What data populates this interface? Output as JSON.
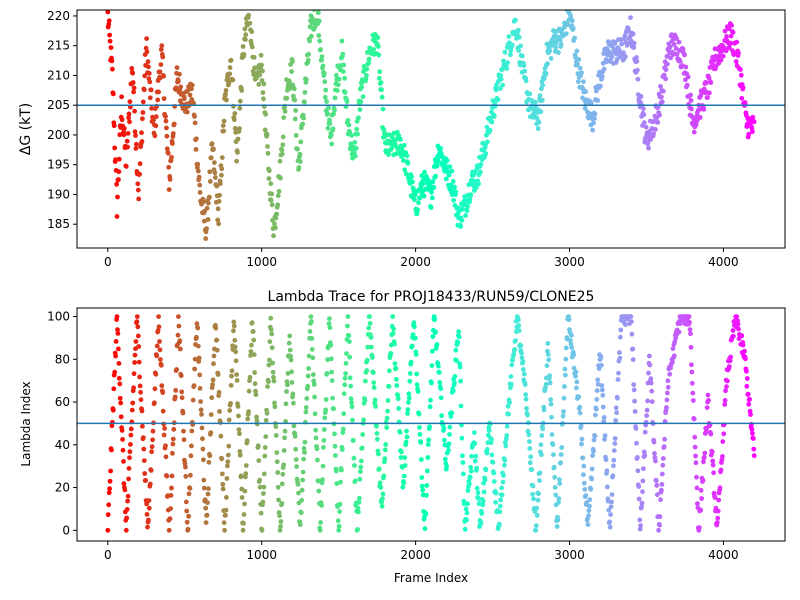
{
  "chart_data": [
    {
      "type": "scatter",
      "title": "",
      "xlabel": "",
      "ylabel": "ΔG (kT)",
      "xlim": [
        -200,
        4400
      ],
      "ylim": [
        181,
        221
      ],
      "xticks": [
        0,
        1000,
        2000,
        3000,
        4000
      ],
      "xtick_labels": [
        "0",
        "1000",
        "2000",
        "3000",
        "4000"
      ],
      "yticks": [
        185,
        190,
        195,
        200,
        205,
        210,
        215,
        220
      ],
      "ytick_labels": [
        "185",
        "190",
        "195",
        "200",
        "205",
        "210",
        "215",
        "220"
      ],
      "hline": 205,
      "hline_color": "#1f77b4",
      "grid": false,
      "legend": "none",
      "colormap": "rainbow (red at frame 0 → violet at frame 4200, point colour varies with frame)",
      "x_range_of_points": [
        0,
        4200
      ],
      "trace_knots": [
        [
          0,
          220
        ],
        [
          30,
          210
        ],
        [
          60,
          188
        ],
        [
          90,
          205
        ],
        [
          120,
          195
        ],
        [
          160,
          212
        ],
        [
          200,
          190
        ],
        [
          250,
          215
        ],
        [
          300,
          200
        ],
        [
          350,
          214
        ],
        [
          400,
          192
        ],
        [
          450,
          210
        ],
        [
          500,
          205
        ],
        [
          550,
          207
        ],
        [
          600,
          190
        ],
        [
          640,
          184
        ],
        [
          680,
          198
        ],
        [
          720,
          186
        ],
        [
          760,
          205
        ],
        [
          800,
          213
        ],
        [
          840,
          196
        ],
        [
          880,
          214
        ],
        [
          920,
          221
        ],
        [
          960,
          208
        ],
        [
          1000,
          212
        ],
        [
          1040,
          196
        ],
        [
          1080,
          184
        ],
        [
          1120,
          194
        ],
        [
          1160,
          208
        ],
        [
          1200,
          211
        ],
        [
          1240,
          194
        ],
        [
          1280,
          207
        ],
        [
          1320,
          218
        ],
        [
          1360,
          221
        ],
        [
          1400,
          210
        ],
        [
          1450,
          199
        ],
        [
          1480,
          208
        ],
        [
          1520,
          214
        ],
        [
          1560,
          202
        ],
        [
          1600,
          196
        ],
        [
          1640,
          206
        ],
        [
          1700,
          214
        ],
        [
          1750,
          216
        ],
        [
          1800,
          198
        ],
        [
          1850,
          198
        ],
        [
          1900,
          199
        ],
        [
          1950,
          194
        ],
        [
          2000,
          188
        ],
        [
          2050,
          192
        ],
        [
          2100,
          190
        ],
        [
          2150,
          198
        ],
        [
          2200,
          194
        ],
        [
          2240,
          192
        ],
        [
          2280,
          186
        ],
        [
          2320,
          188
        ],
        [
          2360,
          192
        ],
        [
          2400,
          193
        ],
        [
          2450,
          198
        ],
        [
          2500,
          204
        ],
        [
          2550,
          209
        ],
        [
          2600,
          214
        ],
        [
          2650,
          219
        ],
        [
          2700,
          210
        ],
        [
          2750,
          204
        ],
        [
          2800,
          203
        ],
        [
          2850,
          213
        ],
        [
          2900,
          216
        ],
        [
          2950,
          216
        ],
        [
          3000,
          221
        ],
        [
          3050,
          212
        ],
        [
          3100,
          206
        ],
        [
          3150,
          203
        ],
        [
          3200,
          210
        ],
        [
          3250,
          214
        ],
        [
          3300,
          214
        ],
        [
          3350,
          214
        ],
        [
          3400,
          218
        ],
        [
          3450,
          208
        ],
        [
          3500,
          199
        ],
        [
          3550,
          202
        ],
        [
          3600,
          207
        ],
        [
          3650,
          215
        ],
        [
          3700,
          215
        ],
        [
          3750,
          212
        ],
        [
          3800,
          202
        ],
        [
          3850,
          205
        ],
        [
          3900,
          208
        ],
        [
          3950,
          213
        ],
        [
          4000,
          215
        ],
        [
          4050,
          217
        ],
        [
          4100,
          212
        ],
        [
          4150,
          202
        ],
        [
          4200,
          201
        ]
      ]
    },
    {
      "type": "scatter",
      "title": "Lambda Trace for PROJ18433/RUN59/CLONE25",
      "xlabel": "Frame Index",
      "ylabel": "Lambda Index",
      "xlim": [
        -200,
        4400
      ],
      "ylim": [
        -5,
        104
      ],
      "xticks": [
        0,
        1000,
        2000,
        3000,
        4000
      ],
      "xtick_labels": [
        "0",
        "1000",
        "2000",
        "3000",
        "4000"
      ],
      "yticks": [
        0,
        20,
        40,
        60,
        80,
        100
      ],
      "ytick_labels": [
        "0",
        "20",
        "40",
        "60",
        "80",
        "100"
      ],
      "hline": 50,
      "hline_color": "#1f77b4",
      "grid": false,
      "legend": "none",
      "colormap": "rainbow (red at frame 0 → violet at frame 4200, point colour varies with frame)",
      "x_range_of_points": [
        0,
        4200
      ],
      "trace_knots": [
        [
          0,
          0
        ],
        [
          60,
          100
        ],
        [
          120,
          0
        ],
        [
          190,
          100
        ],
        [
          260,
          0
        ],
        [
          330,
          100
        ],
        [
          400,
          0
        ],
        [
          460,
          100
        ],
        [
          520,
          0
        ],
        [
          580,
          100
        ],
        [
          640,
          0
        ],
        [
          700,
          100
        ],
        [
          760,
          0
        ],
        [
          820,
          100
        ],
        [
          880,
          0
        ],
        [
          940,
          100
        ],
        [
          1000,
          0
        ],
        [
          1060,
          100
        ],
        [
          1120,
          0
        ],
        [
          1180,
          90
        ],
        [
          1250,
          0
        ],
        [
          1320,
          100
        ],
        [
          1380,
          0
        ],
        [
          1440,
          100
        ],
        [
          1500,
          0
        ],
        [
          1560,
          100
        ],
        [
          1620,
          0
        ],
        [
          1700,
          100
        ],
        [
          1780,
          10
        ],
        [
          1850,
          100
        ],
        [
          1920,
          20
        ],
        [
          1990,
          100
        ],
        [
          2060,
          0
        ],
        [
          2120,
          100
        ],
        [
          2200,
          30
        ],
        [
          2280,
          95
        ],
        [
          2320,
          0
        ],
        [
          2380,
          45
        ],
        [
          2420,
          0
        ],
        [
          2480,
          50
        ],
        [
          2540,
          0
        ],
        [
          2600,
          55
        ],
        [
          2660,
          100
        ],
        [
          2720,
          60
        ],
        [
          2780,
          0
        ],
        [
          2860,
          85
        ],
        [
          2920,
          0
        ],
        [
          2990,
          100
        ],
        [
          3060,
          60
        ],
        [
          3120,
          0
        ],
        [
          3200,
          85
        ],
        [
          3260,
          0
        ],
        [
          3340,
          100
        ],
        [
          3400,
          100
        ],
        [
          3460,
          0
        ],
        [
          3520,
          80
        ],
        [
          3580,
          0
        ],
        [
          3640,
          70
        ],
        [
          3720,
          100
        ],
        [
          3780,
          100
        ],
        [
          3840,
          0
        ],
        [
          3900,
          60
        ],
        [
          3960,
          0
        ],
        [
          4020,
          70
        ],
        [
          4080,
          100
        ],
        [
          4140,
          80
        ],
        [
          4200,
          35
        ]
      ]
    }
  ]
}
